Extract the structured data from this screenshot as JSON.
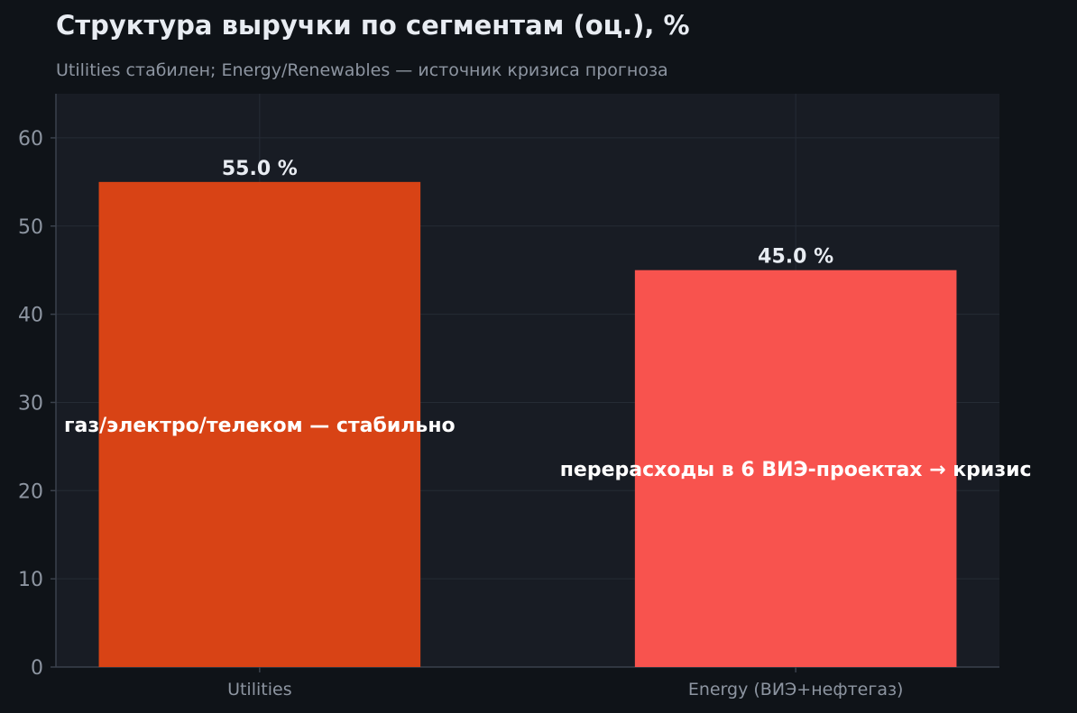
{
  "chart_data": {
    "type": "bar",
    "title": "Структура выручки по сегментам (оц.), %",
    "subtitle": "Utilities стабилен; Energy/Renewables — источник кризиса прогноза",
    "categories": [
      "Utilities",
      "Energy (ВИЭ+нефтегаз)"
    ],
    "values": [
      55.0,
      45.0
    ],
    "value_labels": [
      "55.0 %",
      "45.0 %"
    ],
    "annotations": [
      {
        "text": "газ/электро/телеком — стабильно",
        "category": "Utilities"
      },
      {
        "text": "перерасходы в 6 ВИЭ-проектах → кризис",
        "category": "Energy (ВИЭ+нефтегаз)"
      }
    ],
    "ylim": [
      0,
      65
    ],
    "yticks": [
      0,
      10,
      20,
      30,
      40,
      50,
      60
    ],
    "xlabel": "",
    "ylabel": "",
    "grid": true,
    "colors": {
      "background": "#0f1318",
      "plot_background": "#181c24",
      "grid": "#252b35",
      "axis": "#3a414c",
      "bars": [
        "#d84315",
        "#f8534e"
      ]
    }
  }
}
